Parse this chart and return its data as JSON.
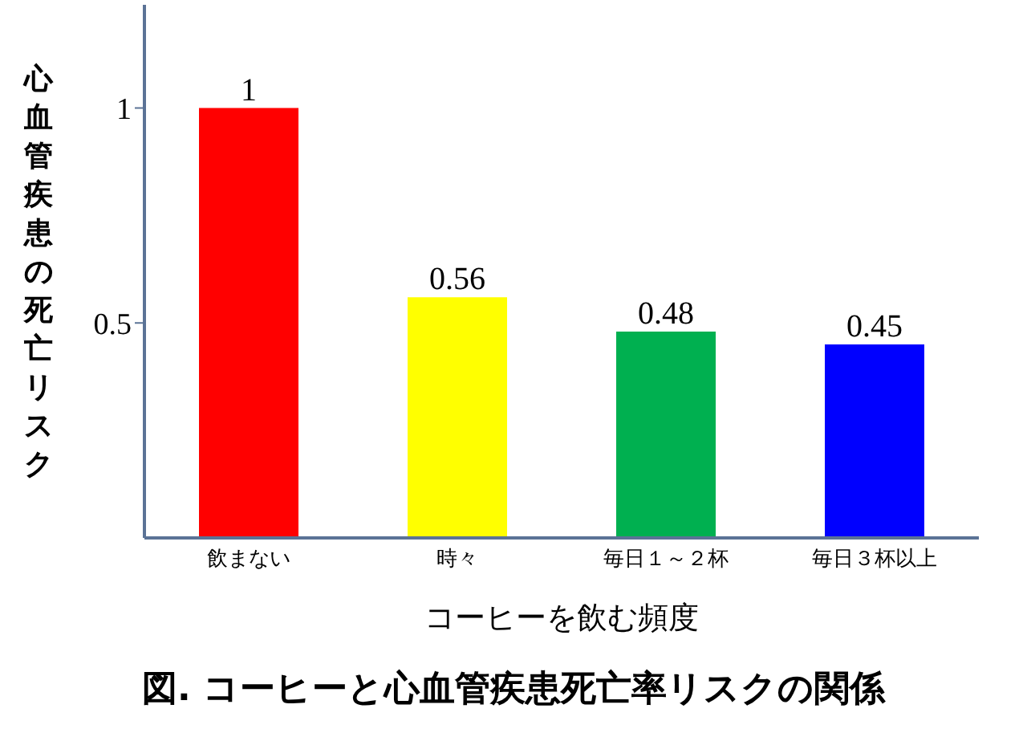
{
  "chart_data": {
    "type": "bar",
    "title": "図. コーヒーと心血管疾患死亡率リスクの関係",
    "xlabel": "コーヒーを飲む頻度",
    "ylabel": "心血管疾患の死亡リスク",
    "categories": [
      "飲まない",
      "時々",
      "毎日１～２杯",
      "毎日３杯以上"
    ],
    "values": [
      1,
      0.56,
      0.48,
      0.45
    ],
    "colors": [
      "#ff0000",
      "#ffff00",
      "#00b050",
      "#0000ff"
    ],
    "ylim": [
      0,
      1.24
    ],
    "yticks": [
      0.5,
      1
    ],
    "data_labels": true,
    "grid": false
  }
}
